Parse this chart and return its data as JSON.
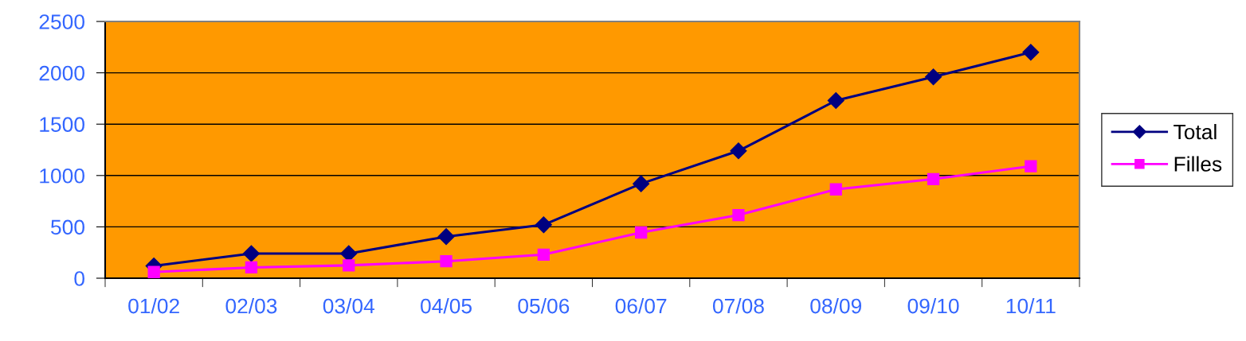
{
  "chart_data": {
    "type": "line",
    "categories": [
      "01/02",
      "02/03",
      "03/04",
      "04/05",
      "05/06",
      "06/07",
      "07/08",
      "08/09",
      "09/10",
      "10/11"
    ],
    "series": [
      {
        "name": "Total",
        "color": "#000080",
        "marker": "diamond",
        "values": [
          120,
          240,
          240,
          405,
          520,
          920,
          1240,
          1730,
          1960,
          2200
        ]
      },
      {
        "name": "Filles",
        "color": "#ff00ff",
        "marker": "square",
        "values": [
          60,
          105,
          125,
          165,
          230,
          445,
          615,
          865,
          965,
          1090
        ]
      }
    ],
    "ylim": [
      0,
      2500
    ],
    "yticks": [
      0,
      500,
      1000,
      1500,
      2000,
      2500
    ],
    "grid": "y",
    "legend": "right",
    "line_style": "solid"
  }
}
